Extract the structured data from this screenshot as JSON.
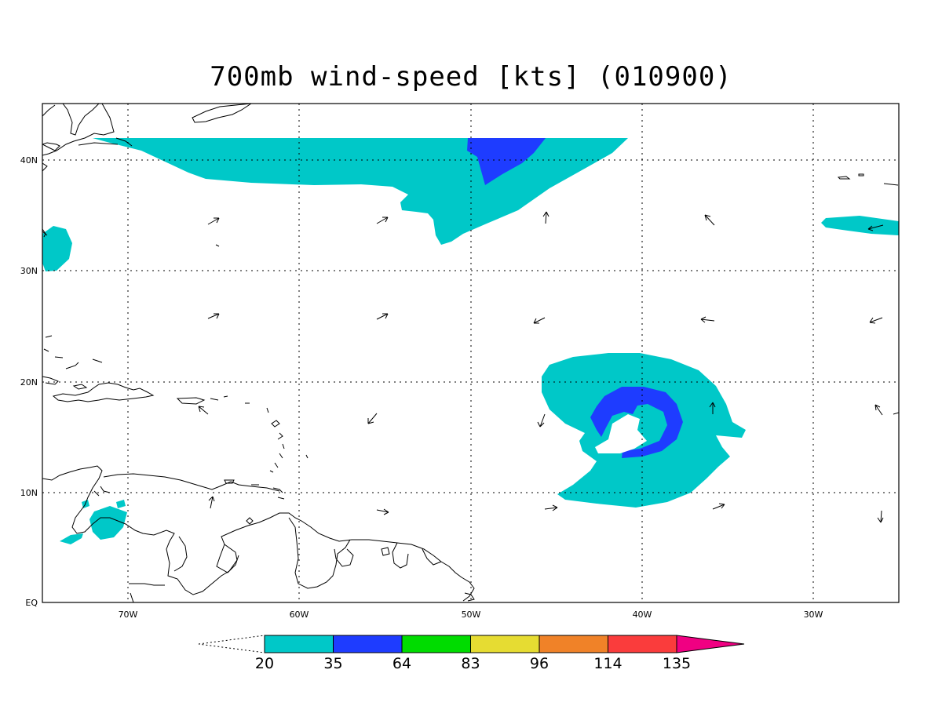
{
  "title": "700mb wind-speed [kts] (010900)",
  "axes": {
    "lon_labels": [
      "70W",
      "60W",
      "50W",
      "40W",
      "30W"
    ],
    "lat_labels": [
      "EQ",
      "10N",
      "20N",
      "30N",
      "40N"
    ]
  },
  "colorbar": {
    "levels": [
      "20",
      "35",
      "64",
      "83",
      "96",
      "114",
      "135"
    ],
    "colors": [
      "#00c8c8",
      "#1e3cff",
      "#00dc00",
      "#e6dc32",
      "#f08228",
      "#fa3c3c",
      "#f00082"
    ]
  },
  "shading": {
    "cyan": "#00c8c8",
    "blue": "#1e3cff"
  }
}
